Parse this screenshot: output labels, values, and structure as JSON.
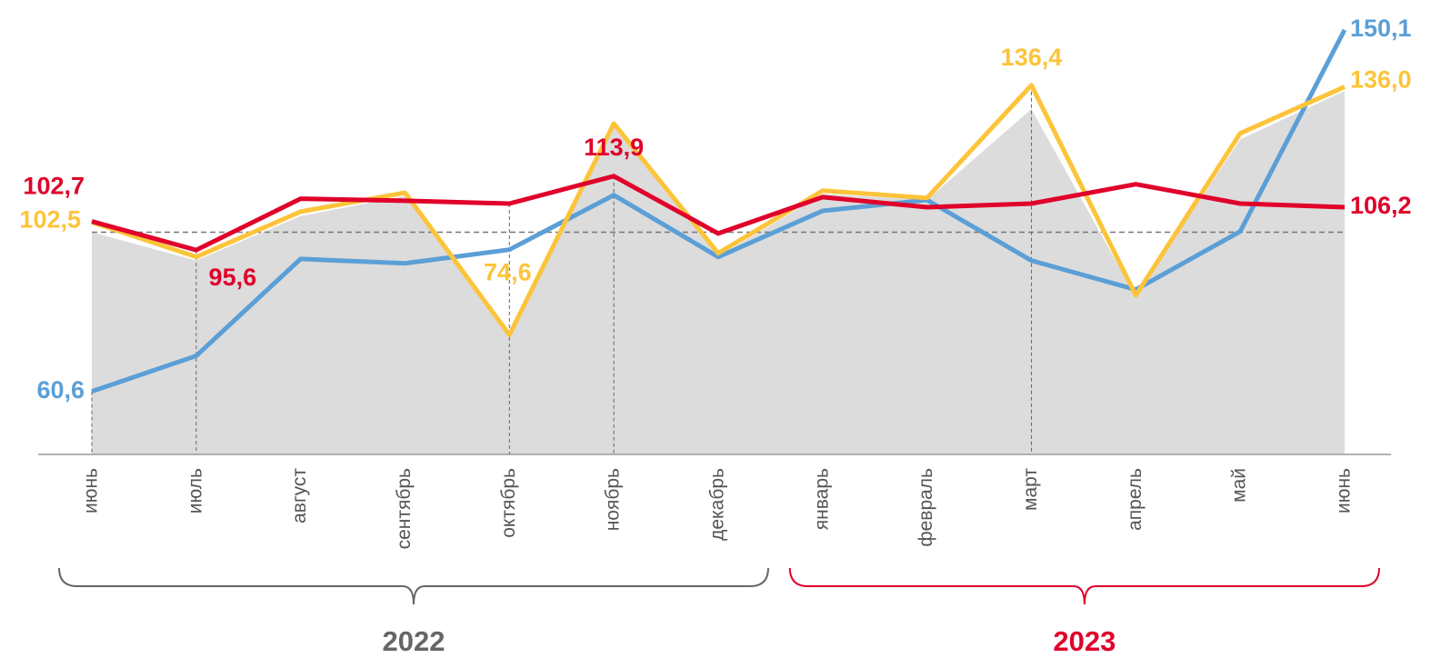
{
  "chart_data": {
    "type": "line",
    "categories": [
      "июнь",
      "июль",
      "август",
      "сентябрь",
      "октябрь",
      "ноябрь",
      "декабрь",
      "январь",
      "февраль",
      "март",
      "апрель",
      "май",
      "июнь"
    ],
    "series": [
      {
        "name": null,
        "type": "area",
        "color": "#dcdcdc",
        "values": [
          100,
          93,
          104,
          109,
          74,
          126,
          94,
          109.5,
          108,
          130.5,
          84,
          123,
          135
        ]
      },
      {
        "name": null,
        "color": "#5b9fd6",
        "values": [
          60.6,
          69.4,
          93.4,
          92.3,
          95.7,
          109.2,
          93.9,
          105.3,
          108.0,
          93.0,
          85.8,
          100.2,
          150.1
        ],
        "value_labels": [
          "60,6",
          null,
          null,
          null,
          null,
          null,
          null,
          null,
          null,
          null,
          null,
          null,
          "150,1"
        ]
      },
      {
        "name": null,
        "color": "#fcc43a",
        "values": [
          102.5,
          93.9,
          105.1,
          109.8,
          74.6,
          126.9,
          94.8,
          110.3,
          108.5,
          136.4,
          84.4,
          124.5,
          136.0
        ],
        "value_labels": [
          "102,5",
          null,
          null,
          null,
          "74,6",
          null,
          null,
          null,
          null,
          "136,4",
          null,
          null,
          "136,0"
        ]
      },
      {
        "name": null,
        "color": "#e0002a",
        "values": [
          102.7,
          95.6,
          108.3,
          107.8,
          107.1,
          113.9,
          99.7,
          108.7,
          106.2,
          107.1,
          111.9,
          107.1,
          106.2
        ],
        "value_labels": [
          "102,7",
          "95,6",
          null,
          null,
          null,
          "113,9",
          null,
          null,
          null,
          null,
          null,
          null,
          "106,2"
        ]
      }
    ],
    "ylim": [
      45,
      157.5
    ],
    "reference_line": 100,
    "groups": [
      {
        "label": "2022",
        "from": 0,
        "to": 6,
        "color": "#666666"
      },
      {
        "label": "2023",
        "from": 7,
        "to": 12,
        "color": "#e0002a"
      }
    ]
  }
}
